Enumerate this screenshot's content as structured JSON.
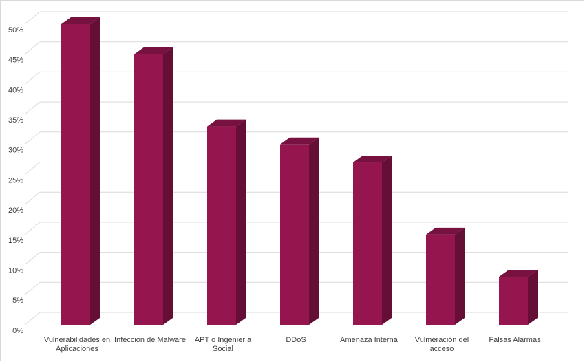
{
  "chart_data": {
    "type": "bar3d",
    "categories": [
      "Vulnerabilidades en Aplicaciones",
      "Infección de Malware",
      "APT o Ingeniería Social",
      "DDoS",
      "Amenaza Interna",
      "Vulmeración del acceso",
      "Falsas Alarmas"
    ],
    "values": [
      50,
      45,
      33,
      30,
      27,
      15,
      8
    ],
    "color": "#95154f",
    "ylim": [
      0,
      50
    ],
    "yticks": [
      {
        "value": 0,
        "label": "0%"
      },
      {
        "value": 5,
        "label": "5%"
      },
      {
        "value": 10,
        "label": "10%"
      },
      {
        "value": 15,
        "label": "15%"
      },
      {
        "value": 20,
        "label": "20%"
      },
      {
        "value": 25,
        "label": "25%"
      },
      {
        "value": 30,
        "label": "30%"
      },
      {
        "value": 35,
        "label": "35%"
      },
      {
        "value": 40,
        "label": "40%"
      },
      {
        "value": 45,
        "label": "45%"
      },
      {
        "value": 50,
        "label": "50%"
      }
    ],
    "grid": true
  }
}
